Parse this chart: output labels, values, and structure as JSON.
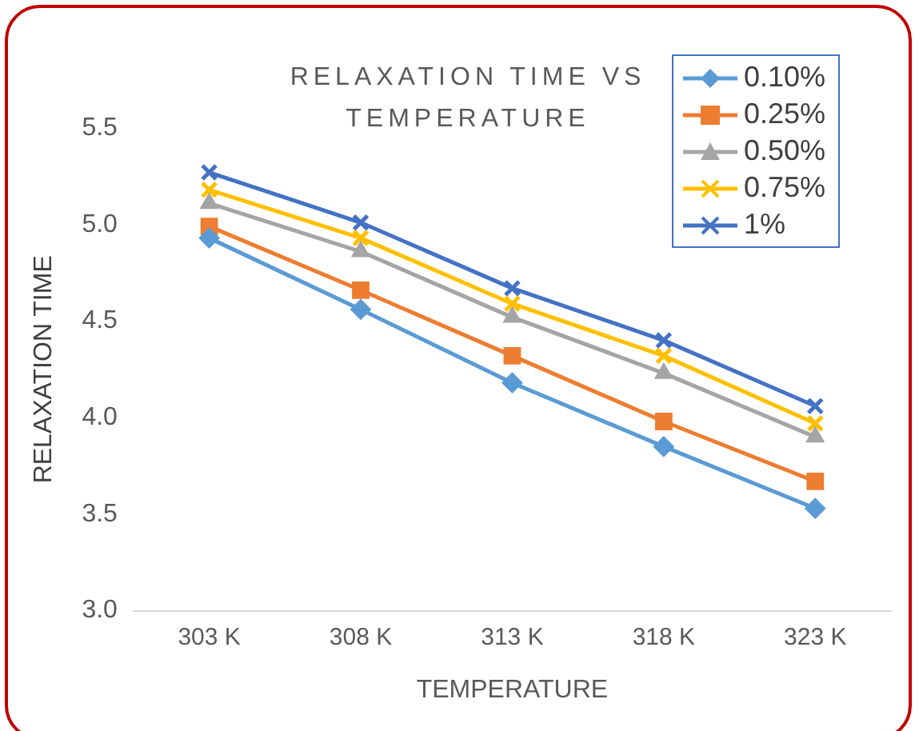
{
  "chart_data": {
    "type": "line",
    "title": "RELAXATION TIME VS TEMPERATURE",
    "xlabel": "TEMPERATURE",
    "ylabel": "RELAXATION TIME",
    "categories": [
      "303 K",
      "308 K",
      "313 K",
      "318 K",
      "323 K"
    ],
    "series": [
      {
        "name": "0.10%",
        "color": "#5b9bd5",
        "marker": "diamond",
        "values": [
          4.93,
          4.56,
          4.18,
          3.85,
          3.53
        ]
      },
      {
        "name": "0.25%",
        "color": "#ed7d31",
        "marker": "square",
        "values": [
          4.99,
          4.66,
          4.32,
          3.98,
          3.67
        ]
      },
      {
        "name": "0.50%",
        "color": "#a5a5a5",
        "marker": "triangle",
        "values": [
          5.11,
          4.86,
          4.52,
          4.23,
          3.9
        ]
      },
      {
        "name": "0.75%",
        "color": "#ffc000",
        "marker": "cross",
        "values": [
          5.18,
          4.93,
          4.59,
          4.32,
          3.97
        ]
      },
      {
        "name": "1%",
        "color": "#4472c4",
        "marker": "cross",
        "values": [
          5.27,
          5.01,
          4.67,
          4.4,
          4.06
        ]
      }
    ],
    "ylim": [
      3,
      5.5
    ],
    "yticks": [
      {
        "value": 3,
        "label": "3.0"
      },
      {
        "value": 3.5,
        "label": "3.5"
      },
      {
        "value": 4,
        "label": "4.0"
      },
      {
        "value": 4.5,
        "label": "4.5"
      },
      {
        "value": 5,
        "label": "5.0"
      },
      {
        "value": 5.5,
        "label": "5.5"
      }
    ],
    "grid": false,
    "legend": "top right"
  }
}
